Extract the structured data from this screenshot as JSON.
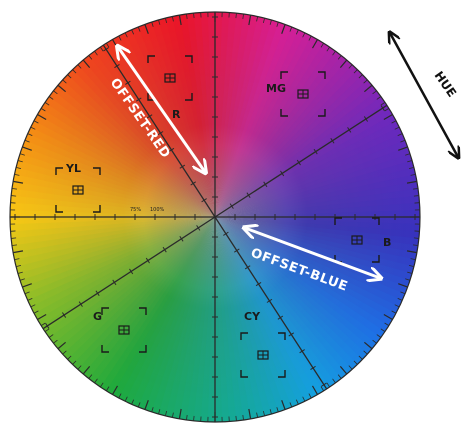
{
  "targets": [
    {
      "id": "r",
      "label": "R",
      "color": "#e0101e"
    },
    {
      "id": "mg",
      "label": "MG",
      "color": "#c8109c"
    },
    {
      "id": "b",
      "label": "B",
      "color": "#3a2ab8"
    },
    {
      "id": "cy",
      "label": "CY",
      "color": "#10a8e0"
    },
    {
      "id": "g",
      "label": "G",
      "color": "#18a83a"
    },
    {
      "id": "yl",
      "label": "YL",
      "color": "#e8d010"
    }
  ],
  "scale": {
    "left": "75%",
    "right": "100%"
  },
  "arrows": {
    "offset_red": "OFFSET-RED",
    "offset_blue": "OFFSET-BLUE",
    "hue": "HUE"
  }
}
